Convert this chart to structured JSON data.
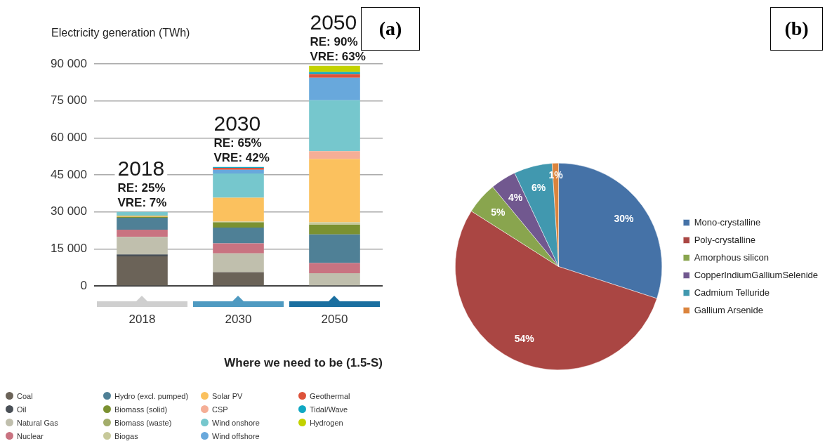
{
  "chart_data": [
    {
      "type": "bar",
      "title": "(a)",
      "ylabel": "Electricity generation (TWh)",
      "xlabel": "Where we need to be (1.5-S)",
      "stacked": true,
      "categories": [
        "2018",
        "2030",
        "2050"
      ],
      "ylim": [
        0,
        90000
      ],
      "yticks": [
        {
          "value": 0,
          "label": "0"
        },
        {
          "value": 15000,
          "label": "15 000"
        },
        {
          "value": 30000,
          "label": "30 000"
        },
        {
          "value": 45000,
          "label": "45 000"
        },
        {
          "value": 60000,
          "label": "60 000"
        },
        {
          "value": 75000,
          "label": "75 000"
        },
        {
          "value": 90000,
          "label": "90 000"
        }
      ],
      "grid": "y",
      "legend": "bottom",
      "annotations": [
        "2018",
        "RE: 25%",
        "VRE: 7%",
        "2030",
        "RE: 65%",
        "VRE: 42%",
        "2050",
        "RE: 90%",
        "VRE: 63%"
      ],
      "series": [
        {
          "name": "Coal",
          "color": "#6b6358",
          "values": [
            12000,
            5600,
            0
          ]
        },
        {
          "name": "Oil",
          "color": "#4a5057",
          "values": [
            800,
            0,
            0
          ]
        },
        {
          "name": "Natural Gas",
          "color": "#c0bfad",
          "values": [
            7100,
            7600,
            5200
          ]
        },
        {
          "name": "Nuclear",
          "color": "#c97381",
          "values": [
            2900,
            4100,
            4100
          ]
        },
        {
          "name": "Hydro (excl. pumped)",
          "color": "#4f8096",
          "values": [
            4900,
            6400,
            11600
          ]
        },
        {
          "name": "Biomass (solid)",
          "color": "#7b9131",
          "values": [
            300,
            2100,
            3900
          ]
        },
        {
          "name": "Biomass (waste)",
          "color": "#a3ad6b",
          "values": [
            0,
            0,
            0
          ]
        },
        {
          "name": "Biogas",
          "color": "#c7c99a",
          "values": [
            0,
            300,
            1000
          ]
        },
        {
          "name": "Solar PV",
          "color": "#fbc15e",
          "values": [
            500,
            9700,
            25700
          ]
        },
        {
          "name": "CSP",
          "color": "#f5ae96",
          "values": [
            0,
            0,
            3100
          ]
        },
        {
          "name": "Wind onshore",
          "color": "#76c7cd",
          "values": [
            1500,
            9800,
            20700
          ]
        },
        {
          "name": "Wind offshore",
          "color": "#68a8dc",
          "values": [
            0,
            1500,
            9100
          ]
        },
        {
          "name": "Geothermal",
          "color": "#dd523a",
          "values": [
            0,
            800,
            1500
          ]
        },
        {
          "name": "Tidal/Wave",
          "color": "#10a8c3",
          "values": [
            0,
            300,
            800
          ]
        },
        {
          "name": "Hydrogen",
          "color": "#c3d200",
          "values": [
            0,
            0,
            2500
          ]
        }
      ]
    },
    {
      "type": "pie",
      "title": "(b)",
      "legend": "right",
      "categories": [
        "Mono-crystalline",
        "Poly-crystalline",
        "Amorphous silicon",
        "CopperIndiumGalliumSelenide",
        "Cadmium Telluride",
        "Gallium Arsenide"
      ],
      "values": [
        30,
        54,
        5,
        4,
        6,
        1
      ],
      "colors": [
        "#4572a7",
        "#aa4643",
        "#89a54e",
        "#71588f",
        "#4198af",
        "#db843d"
      ],
      "value_labels": [
        "30%",
        "54%",
        "5%",
        "4%",
        "6%",
        "1%"
      ]
    }
  ]
}
